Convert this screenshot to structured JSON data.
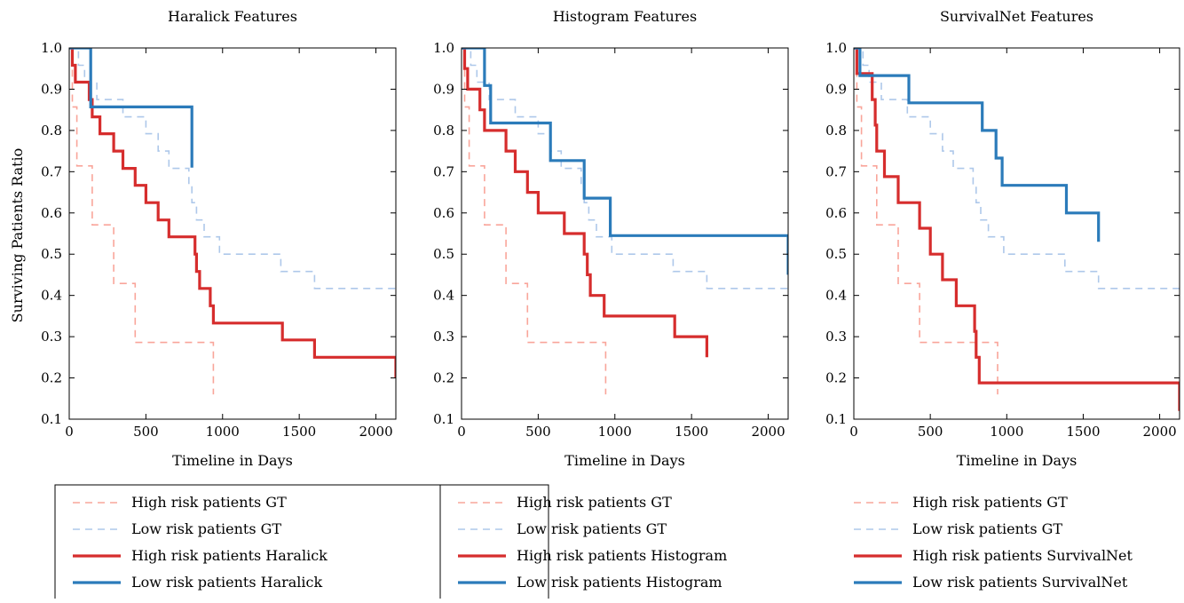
{
  "figure": {
    "ylabel": "Surviving Patients Ratio"
  },
  "colors": {
    "high_gt": "#f9a59a",
    "low_gt": "#aec8ea",
    "high_model": "#d62d2d",
    "low_model": "#2b7bba"
  },
  "chart_data": [
    {
      "type": "line",
      "title": "Haralick Features",
      "xlabel": "Timeline in Days",
      "ylabel": "Surviving Patients Ratio",
      "xlim": [
        0,
        2130
      ],
      "ylim": [
        0.1,
        1.0
      ],
      "xticks": [
        "0",
        "500",
        "1000",
        "1500",
        "2000"
      ],
      "yticks": [
        "0.1",
        "0.2",
        "0.3",
        "0.4",
        "0.5",
        "0.6",
        "0.7",
        "0.8",
        "0.9",
        "1.0"
      ],
      "legend_position": "below",
      "series": [
        {
          "name": "High risk patients GT",
          "style": "dashed",
          "color": "#f9a59a",
          "x": [
            0,
            20,
            50,
            150,
            290,
            430,
            940,
            940
          ],
          "y": [
            1.0,
            0.857,
            0.714,
            0.571,
            0.429,
            0.286,
            0.286,
            0.16
          ]
        },
        {
          "name": "Low risk patients GT",
          "style": "dashed",
          "color": "#aec8ea",
          "x": [
            0,
            60,
            100,
            180,
            350,
            500,
            580,
            650,
            780,
            800,
            830,
            880,
            980,
            1380,
            1600,
            2130
          ],
          "y": [
            1.0,
            0.958,
            0.917,
            0.875,
            0.833,
            0.792,
            0.75,
            0.708,
            0.667,
            0.625,
            0.583,
            0.542,
            0.5,
            0.458,
            0.417,
            0.417
          ]
        },
        {
          "name": "High risk patients Haralick",
          "style": "solid",
          "color": "#d62d2d",
          "x": [
            0,
            20,
            40,
            130,
            150,
            200,
            290,
            350,
            430,
            500,
            580,
            650,
            820,
            830,
            850,
            920,
            940,
            1390,
            1600,
            2130,
            2130
          ],
          "y": [
            1.0,
            0.958,
            0.917,
            0.875,
            0.833,
            0.792,
            0.75,
            0.708,
            0.667,
            0.625,
            0.583,
            0.542,
            0.5,
            0.458,
            0.417,
            0.375,
            0.333,
            0.292,
            0.25,
            0.25,
            0.2
          ]
        },
        {
          "name": "Low risk patients Haralick",
          "style": "solid",
          "color": "#2b7bba",
          "x": [
            0,
            140,
            800,
            800
          ],
          "y": [
            1.0,
            0.857,
            0.857,
            0.71
          ]
        }
      ]
    },
    {
      "type": "line",
      "title": "Histogram Features",
      "xlabel": "Timeline in Days",
      "ylabel": "",
      "xlim": [
        0,
        2130
      ],
      "ylim": [
        0.1,
        1.0
      ],
      "xticks": [
        "0",
        "500",
        "1000",
        "1500",
        "2000"
      ],
      "yticks": [
        "0.1",
        "0.2",
        "0.3",
        "0.4",
        "0.5",
        "0.6",
        "0.7",
        "0.8",
        "0.9",
        "1.0"
      ],
      "legend_position": "below",
      "series": [
        {
          "name": "High risk patients GT",
          "style": "dashed",
          "color": "#f9a59a",
          "x": [
            0,
            20,
            50,
            150,
            290,
            430,
            940,
            940
          ],
          "y": [
            1.0,
            0.857,
            0.714,
            0.571,
            0.429,
            0.286,
            0.286,
            0.16
          ]
        },
        {
          "name": "Low risk patients GT",
          "style": "dashed",
          "color": "#aec8ea",
          "x": [
            0,
            60,
            100,
            180,
            350,
            500,
            580,
            650,
            780,
            800,
            830,
            880,
            980,
            1380,
            1600,
            2130
          ],
          "y": [
            1.0,
            0.958,
            0.917,
            0.875,
            0.833,
            0.792,
            0.75,
            0.708,
            0.667,
            0.625,
            0.583,
            0.542,
            0.5,
            0.458,
            0.417,
            0.417
          ]
        },
        {
          "name": "High risk patients Histogram",
          "style": "solid",
          "color": "#d62d2d",
          "x": [
            0,
            20,
            40,
            120,
            150,
            290,
            350,
            430,
            500,
            670,
            800,
            820,
            840,
            930,
            1390,
            1600,
            1600
          ],
          "y": [
            1.0,
            0.95,
            0.9,
            0.85,
            0.8,
            0.75,
            0.7,
            0.65,
            0.6,
            0.55,
            0.5,
            0.45,
            0.4,
            0.35,
            0.3,
            0.3,
            0.25
          ]
        },
        {
          "name": "Low risk patients Histogram",
          "style": "solid",
          "color": "#2b7bba",
          "x": [
            0,
            150,
            190,
            580,
            800,
            970,
            2130,
            2130
          ],
          "y": [
            1.0,
            0.909,
            0.818,
            0.727,
            0.636,
            0.545,
            0.545,
            0.45
          ]
        }
      ]
    },
    {
      "type": "line",
      "title": "SurvivalNet Features",
      "xlabel": "Timeline in Days",
      "ylabel": "",
      "xlim": [
        0,
        2130
      ],
      "ylim": [
        0.1,
        1.0
      ],
      "xticks": [
        "0",
        "500",
        "1000",
        "1500",
        "2000"
      ],
      "yticks": [
        "0.1",
        "0.2",
        "0.3",
        "0.4",
        "0.5",
        "0.6",
        "0.7",
        "0.8",
        "0.9",
        "1.0"
      ],
      "legend_position": "below",
      "series": [
        {
          "name": "High risk patients GT",
          "style": "dashed",
          "color": "#f9a59a",
          "x": [
            0,
            20,
            50,
            150,
            290,
            430,
            940,
            940
          ],
          "y": [
            1.0,
            0.857,
            0.714,
            0.571,
            0.429,
            0.286,
            0.286,
            0.16
          ]
        },
        {
          "name": "Low risk patients GT",
          "style": "dashed",
          "color": "#aec8ea",
          "x": [
            0,
            60,
            100,
            180,
            350,
            500,
            580,
            650,
            780,
            800,
            830,
            880,
            980,
            1380,
            1600,
            2130
          ],
          "y": [
            1.0,
            0.958,
            0.917,
            0.875,
            0.833,
            0.792,
            0.75,
            0.708,
            0.667,
            0.625,
            0.583,
            0.542,
            0.5,
            0.458,
            0.417,
            0.417
          ]
        },
        {
          "name": "High risk patients SurvivalNet",
          "style": "solid",
          "color": "#d62d2d",
          "x": [
            0,
            20,
            40,
            120,
            140,
            150,
            170,
            200,
            290,
            430,
            500,
            580,
            670,
            790,
            800,
            810,
            820,
            2130,
            2130
          ],
          "y": [
            1.0,
            0.938,
            0.938,
            0.875,
            0.813,
            0.75,
            0.75,
            0.688,
            0.625,
            0.563,
            0.5,
            0.438,
            0.375,
            0.313,
            0.25,
            0.25,
            0.188,
            0.188,
            0.12
          ]
        },
        {
          "name": "Low risk patients SurvivalNet",
          "style": "solid",
          "color": "#2b7bba",
          "x": [
            0,
            40,
            360,
            840,
            930,
            970,
            1390,
            1600,
            1600
          ],
          "y": [
            1.0,
            0.933,
            0.867,
            0.8,
            0.733,
            0.667,
            0.6,
            0.6,
            0.53
          ]
        }
      ]
    }
  ]
}
